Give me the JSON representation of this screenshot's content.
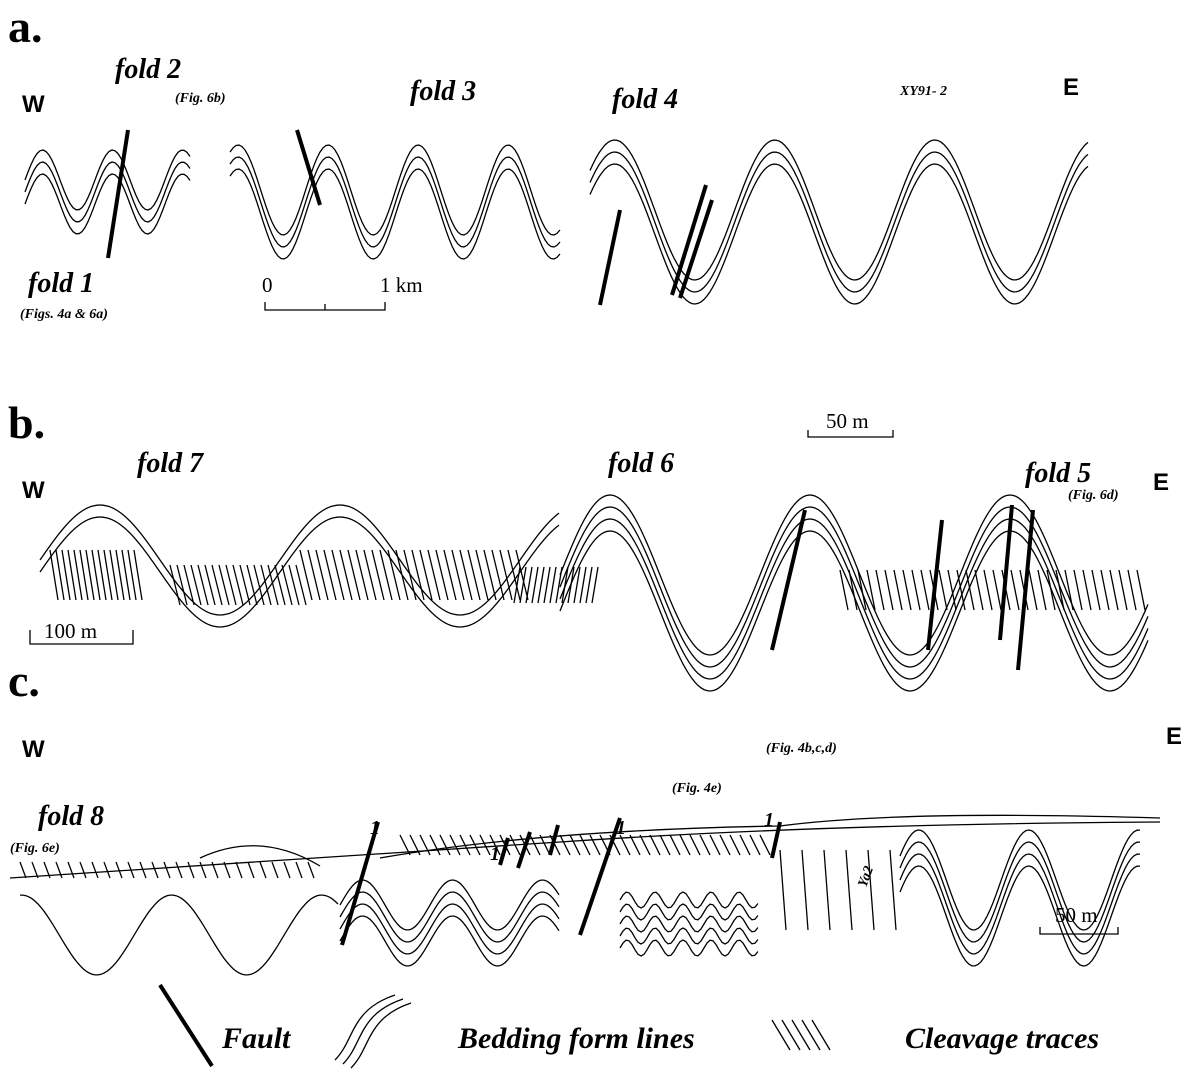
{
  "panels": [
    {
      "label": "a.",
      "west": "W",
      "east": "E",
      "annotations": [
        "fold 2",
        "(Fig. 6b)",
        "fold 3",
        "fold 4",
        "XY91- 2",
        "fold 1",
        "(Figs. 4a & 6a)"
      ],
      "scale_bar": [
        "0",
        "1 km"
      ]
    },
    {
      "label": "b.",
      "west": "W",
      "east": "E",
      "annotations": [
        "fold 7",
        "fold 6",
        "fold 5",
        "(Fig. 6d)"
      ],
      "scale_bars": [
        "50 m",
        "100 m"
      ]
    },
    {
      "label": "c.",
      "west": "W",
      "east": "E",
      "annotations": [
        "(Fig. 4b,c,d)",
        "(Fig. 4e)",
        "fold 8",
        "(Fig. 6e)",
        "Ya2"
      ],
      "fault_labels": [
        "1",
        "1",
        "1",
        "1"
      ],
      "scale_bar": "50 m"
    }
  ],
  "legend": [
    "Fault",
    "Bedding form lines",
    "Cleavage traces"
  ]
}
